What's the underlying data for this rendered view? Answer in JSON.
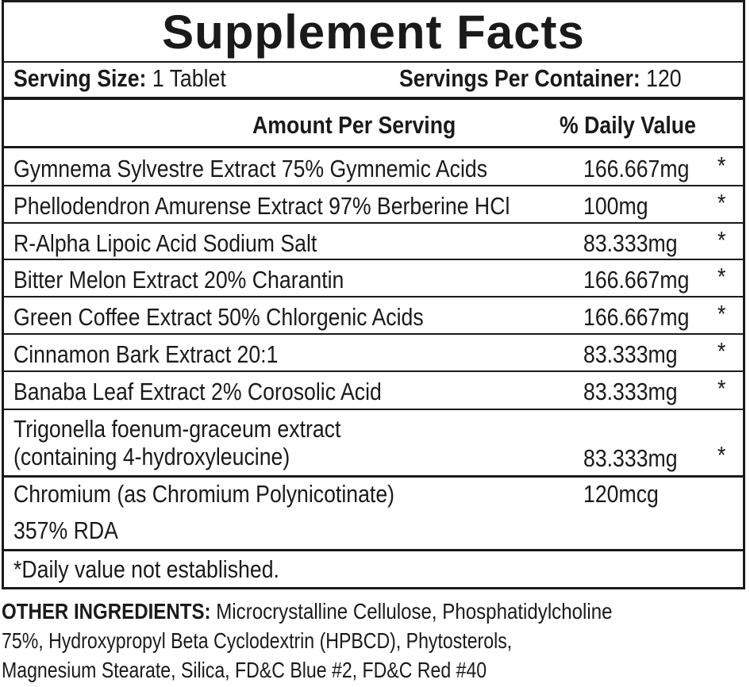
{
  "title": "Supplement Facts",
  "serving_size_label": "Serving Size:",
  "serving_size_value": "1 Tablet",
  "servings_per_container_label": "Servings Per Container:",
  "servings_per_container_value": "120",
  "header": {
    "amount": "Amount Per Serving",
    "daily_value": "% Daily Value"
  },
  "rows": [
    {
      "name": "Gymnema Sylvestre Extract 75% Gymnemic Acids",
      "amount": "166.667mg",
      "dv": "*"
    },
    {
      "name": "Phellodendron Amurense Extract 97% Berberine HCl",
      "amount": "100mg",
      "dv": "*"
    },
    {
      "name": "R-Alpha Lipoic Acid Sodium Salt",
      "amount": "83.333mg",
      "dv": "*"
    },
    {
      "name": "Bitter Melon Extract 20% Charantin",
      "amount": "166.667mg",
      "dv": "*"
    },
    {
      "name": "Green Coffee Extract 50% Chlorgenic Acids",
      "amount": "166.667mg",
      "dv": "*"
    },
    {
      "name": "Cinnamon Bark Extract 20:1",
      "amount": "83.333mg",
      "dv": "*"
    },
    {
      "name": "Banaba Leaf Extract 2% Corosolic Acid",
      "amount": "83.333mg",
      "dv": "*"
    }
  ],
  "trigonella": {
    "line1": "Trigonella foenum-graceum extract",
    "line2": "(containing 4-hydroxyleucine)",
    "amount": "83.333mg",
    "dv": "*"
  },
  "chromium": {
    "line1": "Chromium (as Chromium Polynicotinate)",
    "line2": "357% RDA",
    "amount": "120mcg"
  },
  "footnote": "*Daily value not established.",
  "other_ingredients": {
    "label": "OTHER INGREDIENTS:",
    "line1": " Microcrystalline Cellulose, Phosphatidylcholine",
    "line2": "75%, Hydroxypropyl Beta Cyclodextrin (HPBCD), Phytosterols,",
    "line3": "Magnesium Stearate, Silica, FD&C Blue #2, FD&C Red #40"
  }
}
